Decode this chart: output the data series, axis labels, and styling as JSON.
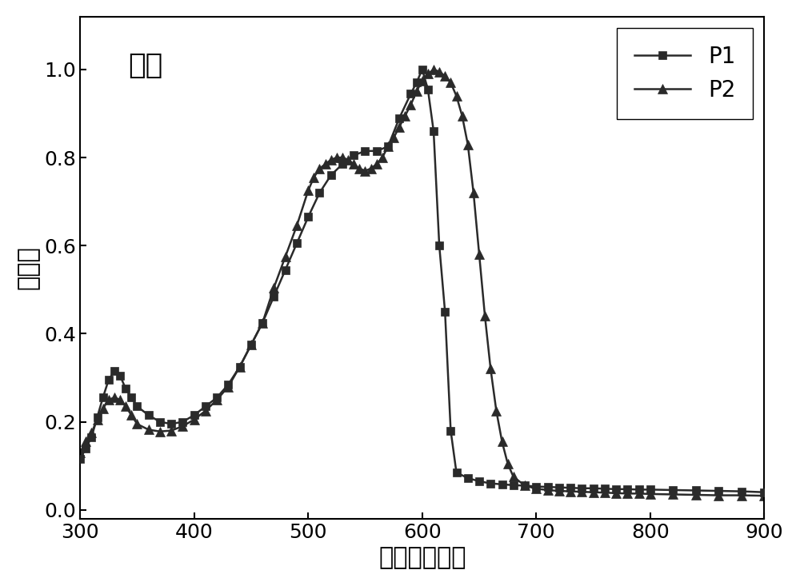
{
  "title": "薄膜",
  "xlabel": "波长（纳米）",
  "ylabel": "吸光度",
  "xlim": [
    300,
    900
  ],
  "ylim": [
    -0.02,
    1.12
  ],
  "yticks": [
    0.0,
    0.2,
    0.4,
    0.6,
    0.8,
    1.0
  ],
  "xticks": [
    300,
    400,
    500,
    600,
    700,
    800,
    900
  ],
  "background_color": "#ffffff",
  "plot_bg_color": "#ffffff",
  "P1_x": [
    300,
    305,
    310,
    315,
    320,
    325,
    330,
    335,
    340,
    345,
    350,
    360,
    370,
    380,
    390,
    400,
    410,
    420,
    430,
    440,
    450,
    460,
    470,
    480,
    490,
    500,
    510,
    520,
    530,
    540,
    550,
    560,
    570,
    580,
    590,
    595,
    600,
    605,
    610,
    615,
    620,
    625,
    630,
    640,
    650,
    660,
    670,
    680,
    690,
    700,
    710,
    720,
    730,
    740,
    750,
    760,
    770,
    780,
    790,
    800,
    820,
    840,
    860,
    880,
    900
  ],
  "P1_y": [
    0.115,
    0.14,
    0.165,
    0.21,
    0.255,
    0.295,
    0.315,
    0.305,
    0.275,
    0.255,
    0.235,
    0.215,
    0.2,
    0.195,
    0.2,
    0.215,
    0.235,
    0.255,
    0.285,
    0.325,
    0.375,
    0.425,
    0.485,
    0.545,
    0.605,
    0.665,
    0.72,
    0.76,
    0.785,
    0.805,
    0.815,
    0.815,
    0.825,
    0.89,
    0.945,
    0.97,
    1.0,
    0.955,
    0.86,
    0.6,
    0.45,
    0.18,
    0.085,
    0.072,
    0.065,
    0.06,
    0.058,
    0.056,
    0.055,
    0.053,
    0.052,
    0.051,
    0.05,
    0.049,
    0.049,
    0.048,
    0.047,
    0.047,
    0.046,
    0.046,
    0.045,
    0.044,
    0.043,
    0.042,
    0.04
  ],
  "P2_x": [
    300,
    305,
    310,
    315,
    320,
    325,
    330,
    335,
    340,
    345,
    350,
    360,
    370,
    380,
    390,
    400,
    410,
    420,
    430,
    440,
    450,
    460,
    470,
    480,
    490,
    500,
    505,
    510,
    515,
    520,
    525,
    530,
    535,
    540,
    545,
    550,
    555,
    560,
    565,
    570,
    575,
    580,
    585,
    590,
    595,
    600,
    605,
    610,
    615,
    620,
    625,
    630,
    635,
    640,
    645,
    650,
    655,
    660,
    665,
    670,
    675,
    680,
    690,
    700,
    710,
    720,
    730,
    740,
    750,
    760,
    770,
    780,
    790,
    800,
    820,
    840,
    860,
    880,
    900
  ],
  "P2_y": [
    0.13,
    0.155,
    0.175,
    0.205,
    0.23,
    0.25,
    0.255,
    0.25,
    0.235,
    0.215,
    0.195,
    0.182,
    0.178,
    0.18,
    0.19,
    0.205,
    0.225,
    0.25,
    0.28,
    0.325,
    0.375,
    0.425,
    0.505,
    0.575,
    0.645,
    0.725,
    0.755,
    0.775,
    0.785,
    0.795,
    0.8,
    0.8,
    0.795,
    0.785,
    0.775,
    0.77,
    0.775,
    0.785,
    0.8,
    0.825,
    0.845,
    0.87,
    0.895,
    0.92,
    0.95,
    0.975,
    0.99,
    1.0,
    0.995,
    0.985,
    0.97,
    0.94,
    0.895,
    0.83,
    0.72,
    0.58,
    0.44,
    0.32,
    0.225,
    0.155,
    0.105,
    0.075,
    0.055,
    0.048,
    0.045,
    0.043,
    0.042,
    0.041,
    0.04,
    0.039,
    0.038,
    0.037,
    0.037,
    0.036,
    0.035,
    0.034,
    0.033,
    0.033,
    0.032
  ],
  "line_color": "#2a2a2a",
  "marker_color": "#2a2a2a",
  "linewidth": 1.8,
  "markersize_sq": 7,
  "markersize_tr": 8,
  "legend_fontsize": 20,
  "title_fontsize": 26,
  "tick_fontsize": 18,
  "axis_label_fontsize": 22
}
